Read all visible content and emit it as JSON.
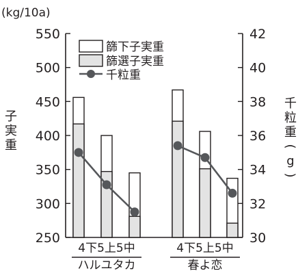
{
  "chart_data": {
    "type": "bar",
    "unit_left": "(kg/10a)",
    "ylabel_left": "子実重",
    "ylabel_right": "千粒重(g)",
    "y_left_ticks": [
      "550",
      "500",
      "450",
      "400",
      "350",
      "300",
      "250"
    ],
    "y_right_ticks": [
      "42",
      "40",
      "38",
      "36",
      "34",
      "32",
      "30"
    ],
    "ylim_left": [
      250,
      550
    ],
    "ylim_right": [
      30,
      42
    ],
    "legend_placement": "top-left",
    "legend": {
      "under_sieve": "篩下子実重",
      "sieved": "篩選子実重",
      "thousand": "千粒重"
    },
    "groups": [
      {
        "name": "ハルユタカ",
        "categories": [
          "4下",
          "5上",
          "5中"
        ],
        "sieved": [
          417,
          347,
          281
        ],
        "total": [
          456,
          400,
          345
        ],
        "thousand_grain_weight": [
          35.0,
          33.1,
          31.5
        ]
      },
      {
        "name": "春よ恋",
        "categories": [
          "4下",
          "5上",
          "5中"
        ],
        "sieved": [
          421,
          351,
          271
        ],
        "total": [
          467,
          406,
          337
        ],
        "thousand_grain_weight": [
          35.4,
          34.7,
          32.6
        ]
      }
    ],
    "colors": {
      "under_sieve": "#ffffff",
      "sieved": "#e3e3e3",
      "line": "#55575a",
      "axis": "#231f20"
    }
  }
}
